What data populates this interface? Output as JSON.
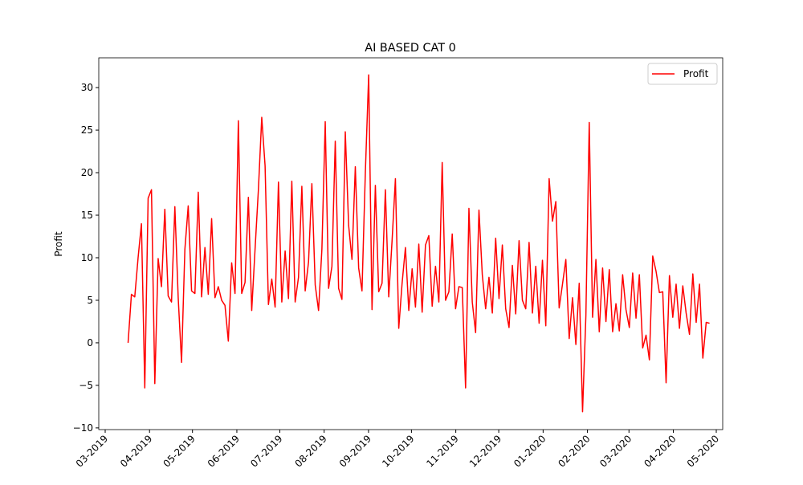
{
  "chart_data": {
    "type": "line",
    "title": "AI BASED CAT 0",
    "ylabel": "Profit",
    "series": [
      {
        "name": "Profit",
        "color": "#ff0000",
        "values": [
          0,
          5.7,
          5.4,
          10,
          14,
          -5.3,
          17,
          18,
          -4.8,
          9.9,
          6.6,
          15.7,
          5.5,
          4.8,
          16,
          5.3,
          -2.3,
          11,
          16.1,
          6.1,
          5.8,
          17.7,
          5.4,
          11.2,
          5.7,
          14.6,
          5.3,
          6.6,
          5,
          4.4,
          0.2,
          9.4,
          5.8,
          26.1,
          5.8,
          7.1,
          17.1,
          3.8,
          11,
          18,
          26.5,
          20.8,
          4.5,
          7.5,
          4.2,
          18.9,
          4.8,
          10.8,
          5.2,
          19,
          4.8,
          7.7,
          18.4,
          6.1,
          9.5,
          18.7,
          6.8,
          3.8,
          11,
          26,
          6.4,
          9,
          23.7,
          6.4,
          5.1,
          24.8,
          13.8,
          9.8,
          20.7,
          8.8,
          6.1,
          20,
          31.5,
          3.9,
          18.5,
          6,
          7,
          18,
          5.4,
          12,
          19.3,
          1.7,
          7,
          11.2,
          3.8,
          8.7,
          4.2,
          11.6,
          3.6,
          11.5,
          12.6,
          4.3,
          9,
          4.8,
          21.2,
          5,
          6,
          12.8,
          4,
          6.6,
          6.5,
          -5.3,
          15.8,
          4.8,
          1.2,
          15.6,
          8,
          4,
          7.7,
          3.5,
          12.3,
          5.2,
          11.5,
          4,
          1.8,
          9.1,
          3.4,
          12,
          5,
          4,
          11.8,
          3.5,
          9,
          2.3,
          9.7,
          2,
          19.3,
          14.3,
          16.6,
          4.1,
          6.9,
          9.8,
          0.5,
          5.3,
          -0.2,
          7,
          -8.1,
          3.2,
          25.9,
          3,
          9.8,
          1.3,
          8.8,
          2.5,
          8.6,
          1.3,
          4.6,
          1.4,
          8,
          3.9,
          1.8,
          8.2,
          2.9,
          8,
          -0.6,
          0.9,
          -2,
          10.2,
          8.4,
          5.9,
          6,
          -4.7,
          7.9,
          3,
          6.9,
          1.7,
          6.7,
          3.5,
          1,
          8.1,
          2.4,
          6.9,
          -1.8,
          2.4,
          2.3
        ]
      }
    ],
    "xlim": [
      -8.77,
      177.94
    ],
    "xticks": [
      {
        "value": -6.85,
        "label": "03-2019"
      },
      {
        "value": 6.42,
        "label": "04-2019"
      },
      {
        "value": 19.27,
        "label": "05-2019"
      },
      {
        "value": 32.55,
        "label": "06-2019"
      },
      {
        "value": 45.4,
        "label": "07-2019"
      },
      {
        "value": 58.67,
        "label": "08-2019"
      },
      {
        "value": 71.95,
        "label": "09-2019"
      },
      {
        "value": 84.8,
        "label": "10-2019"
      },
      {
        "value": 98.07,
        "label": "11-2019"
      },
      {
        "value": 110.92,
        "label": "12-2019"
      },
      {
        "value": 124.2,
        "label": "01-2020"
      },
      {
        "value": 137.47,
        "label": "02-2020"
      },
      {
        "value": 149.89,
        "label": "03-2020"
      },
      {
        "value": 163.17,
        "label": "04-2020"
      },
      {
        "value": 176.02,
        "label": "05-2020"
      }
    ],
    "ylim": [
      -10.2,
      33.5
    ],
    "yticks": [
      {
        "value": -10,
        "label": "−10"
      },
      {
        "value": -5,
        "label": "−5"
      },
      0,
      5,
      10,
      15,
      20,
      25,
      30
    ],
    "legend": "upper right"
  }
}
